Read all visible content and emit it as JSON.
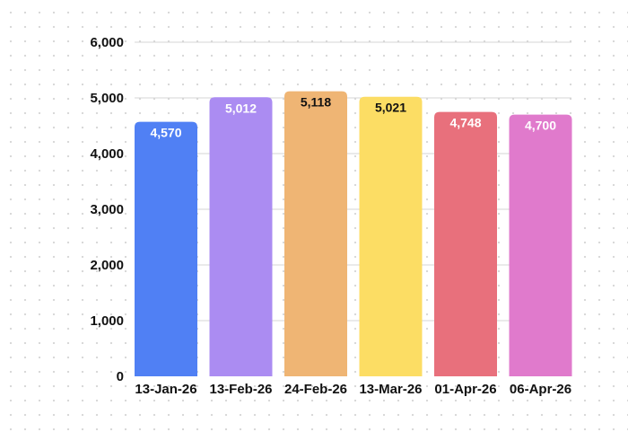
{
  "chart_data": {
    "type": "bar",
    "categories": [
      "13-Jan-26",
      "13-Feb-26",
      "24-Feb-26",
      "13-Mar-26",
      "01-Apr-26",
      "06-Apr-26"
    ],
    "values": [
      4570,
      5012,
      5118,
      5021,
      4748,
      4700
    ],
    "value_labels": [
      "4,570",
      "5,012",
      "5,118",
      "5,021",
      "4,748",
      "4,700"
    ],
    "bar_colors": [
      "#5080f4",
      "#ab8cf2",
      "#efb574",
      "#fcdd64",
      "#e8707c",
      "#e07acc"
    ],
    "value_label_colors": [
      "#ffffff",
      "#ffffff",
      "#111111",
      "#111111",
      "#ffffff",
      "#ffffff"
    ],
    "y_ticks": [
      "0",
      "1,000",
      "2,000",
      "3,000",
      "4,000",
      "5,000",
      "6,000"
    ],
    "ylim": [
      0,
      6000
    ],
    "grid": true,
    "legend": "none",
    "title": "",
    "xlabel": "",
    "ylabel": ""
  }
}
